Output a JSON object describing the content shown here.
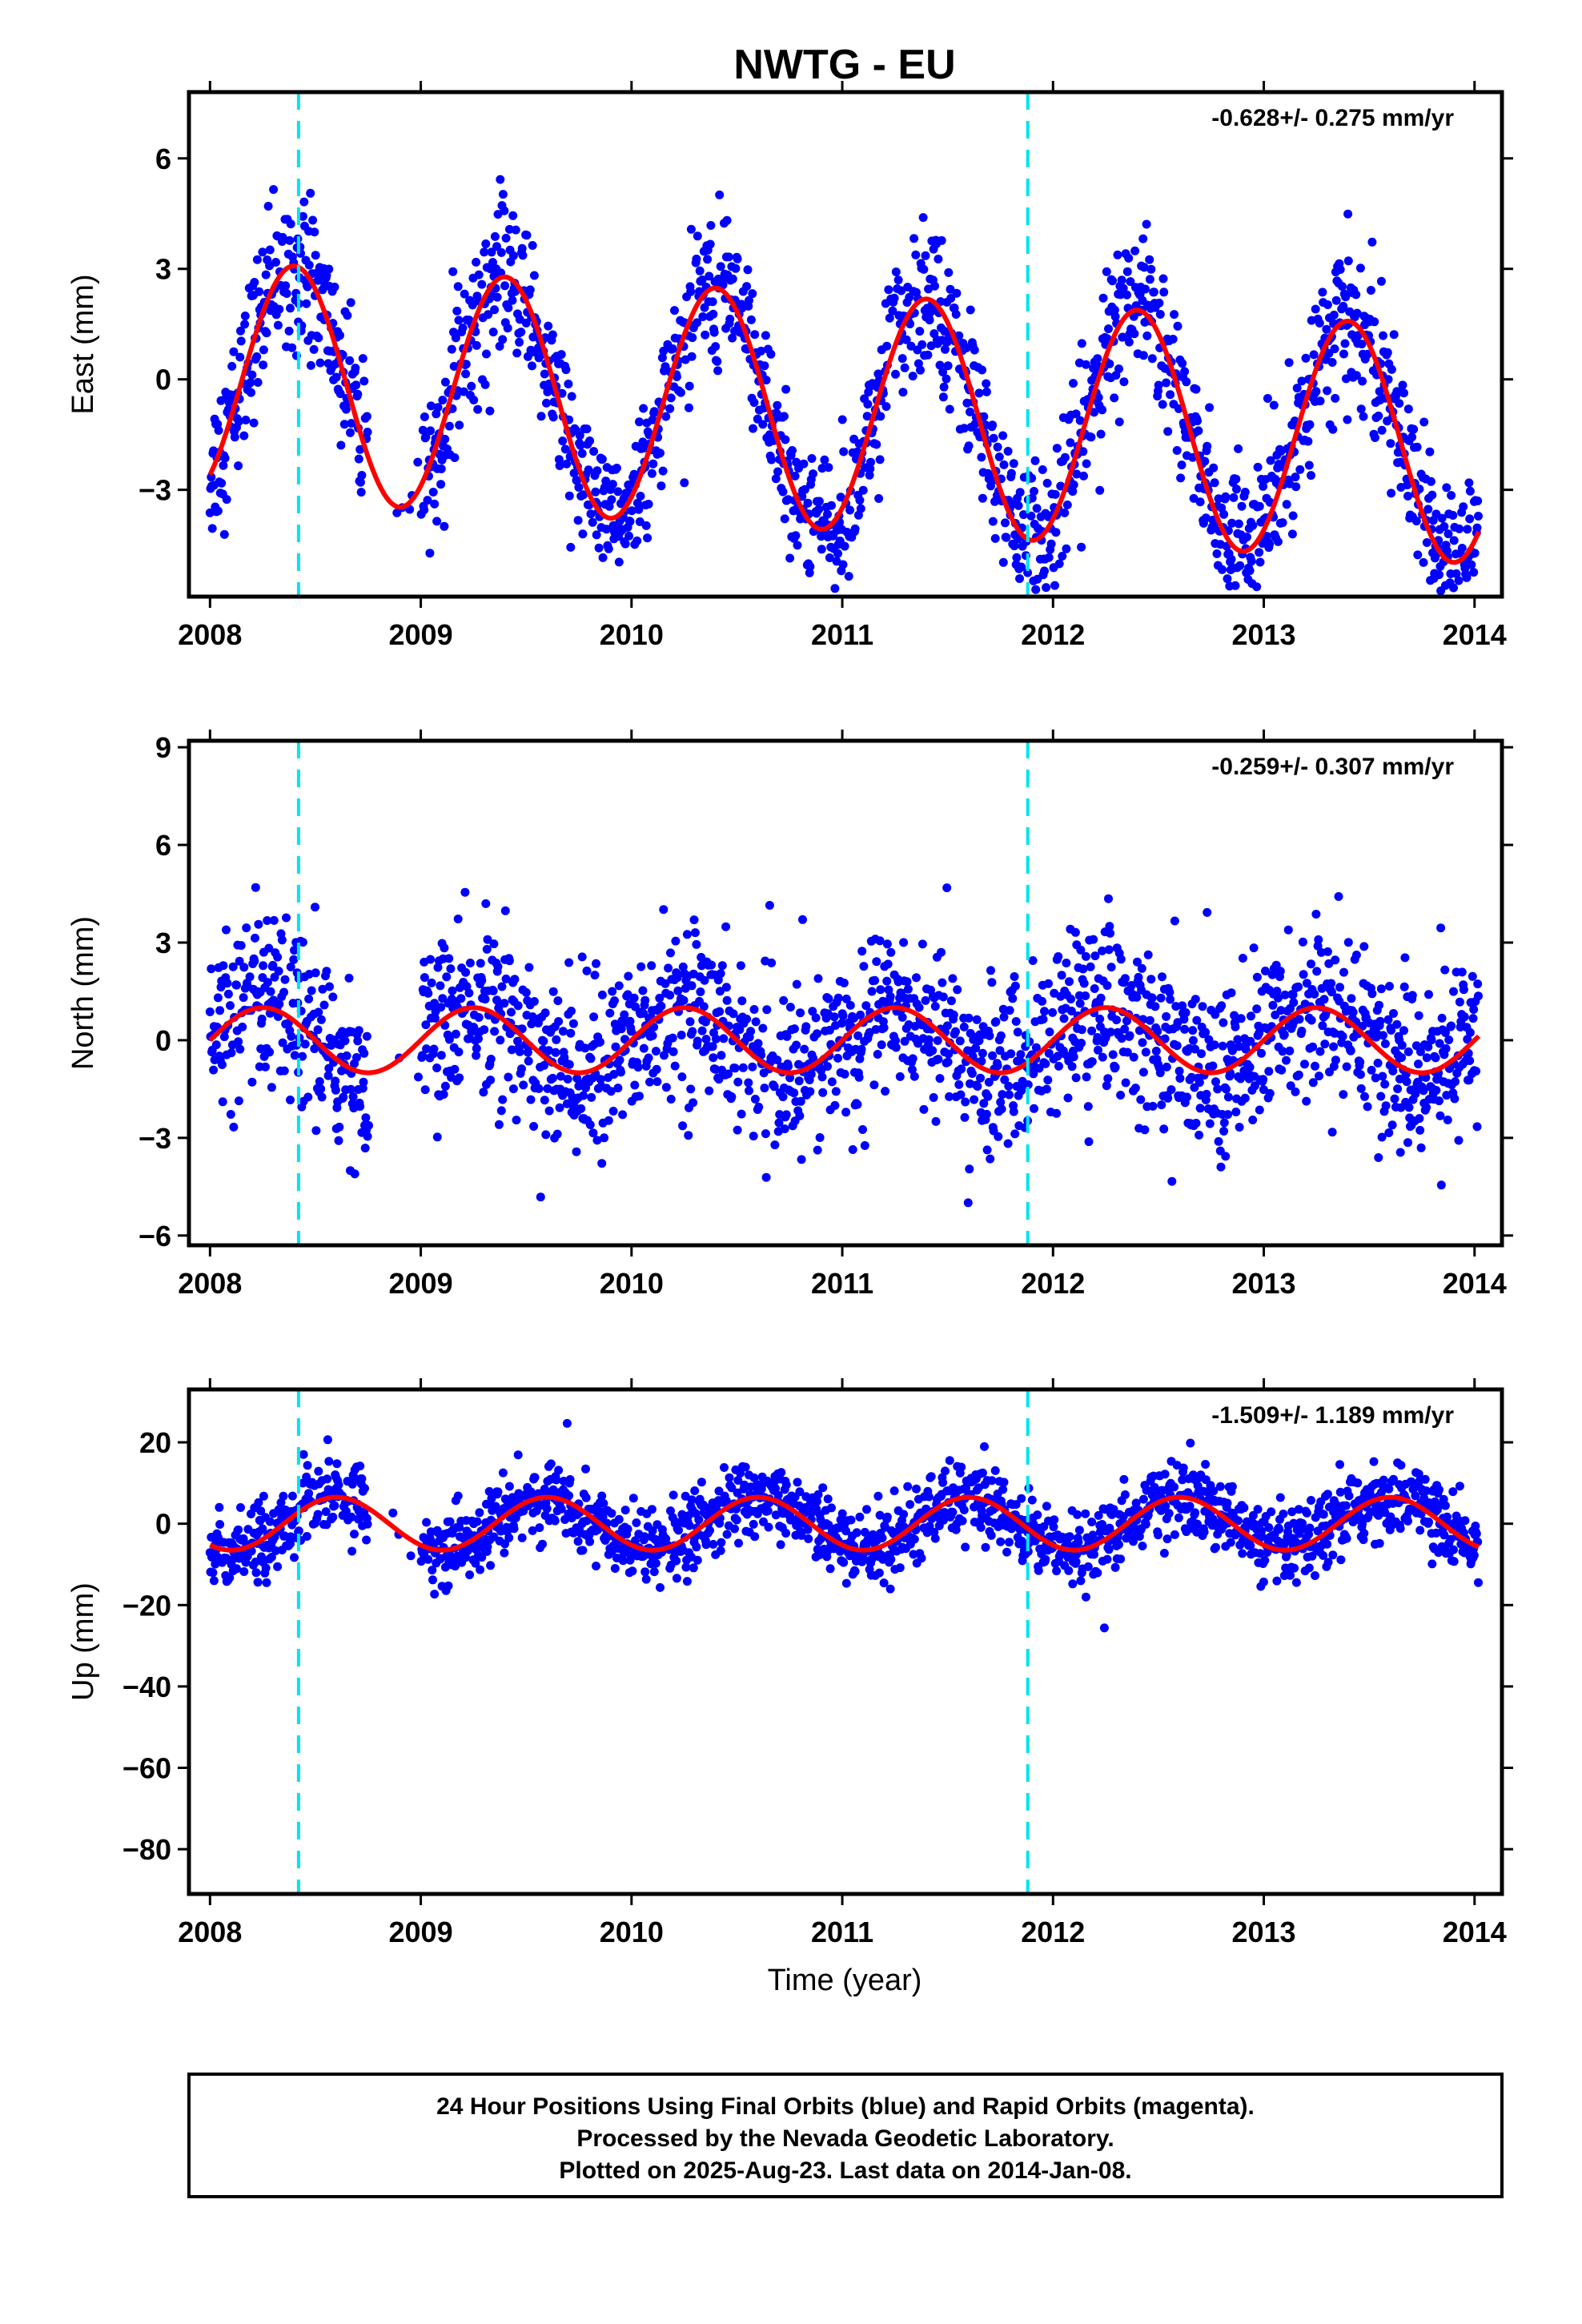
{
  "title": "NWTG - EU",
  "xlabel": "Time (year)",
  "colors": {
    "points": "#0000ff",
    "model": "#ff0000",
    "events": "#00e5ee",
    "frame": "#000000"
  },
  "footer": {
    "line1": "24 Hour Positions Using Final Orbits (blue) and Rapid Orbits (magenta).",
    "line2": "Processed by the Nevada Geodetic Laboratory.",
    "line3": "Plotted on 2025-Aug-23. Last data on 2014-Jan-08."
  },
  "chart_data": [
    {
      "type": "scatter",
      "ylabel": "East (mm)",
      "rate": "-0.628+/- 0.275 mm/yr",
      "xlim": [
        2007.9,
        2014.13
      ],
      "ylim": [
        -5.9,
        7.8
      ],
      "xticks": [
        2008,
        2009,
        2010,
        2011,
        2012,
        2013,
        2014
      ],
      "yticks": [
        -3,
        0,
        3,
        6
      ],
      "ytick_labels": [
        "−3",
        "0",
        "3",
        "6"
      ],
      "event_lines": [
        2008.42,
        2011.88
      ],
      "model": {
        "offset": -0.9,
        "amplitude": 3.2,
        "trend": -0.3,
        "phase": 2009.15,
        "gap": [
          2008.45,
          2009.0
        ]
      },
      "data_gap": [
        2008.75,
        2009.0
      ],
      "noise": 1.0,
      "series": [
        {
          "name": "",
          "values": []
        }
      ]
    },
    {
      "type": "scatter",
      "ylabel": "North (mm)",
      "rate": "-0.259+/- 0.307 mm/yr",
      "xlim": [
        2007.9,
        2014.13
      ],
      "ylim": [
        -6.3,
        9.2
      ],
      "xticks": [
        2008,
        2009,
        2010,
        2011,
        2012,
        2013,
        2014
      ],
      "yticks": [
        -6,
        -3,
        0,
        3,
        6,
        9
      ],
      "ytick_labels": [
        "−6",
        "−3",
        "0",
        "3",
        "6",
        "9"
      ],
      "event_lines": [
        2008.42,
        2011.88
      ],
      "model": {
        "offset": 0.0,
        "amplitude": 1.0,
        "trend": 0.0,
        "phase": 2009.0,
        "gap": [
          2008.45,
          2009.0
        ]
      },
      "data_gap": [
        2008.75,
        2009.0
      ],
      "noise": 1.3,
      "series": [
        {
          "name": "",
          "values": []
        }
      ]
    },
    {
      "type": "scatter",
      "ylabel": "Up (mm)",
      "rate": "-1.509+/- 1.189 mm/yr",
      "xlim": [
        2007.9,
        2014.13
      ],
      "ylim": [
        -91,
        33
      ],
      "xticks": [
        2008,
        2009,
        2010,
        2011,
        2012,
        2013,
        2014
      ],
      "yticks": [
        -80,
        -60,
        -40,
        -20,
        0,
        20
      ],
      "ytick_labels": [
        "−80",
        "−60",
        "−40",
        "−20",
        "0",
        "20"
      ],
      "event_lines": [
        2008.42,
        2011.88
      ],
      "model": {
        "offset": 0.0,
        "amplitude": 6.5,
        "trend": 0.0,
        "phase": 2009.35,
        "gap": [
          2008.45,
          2009.0
        ]
      },
      "data_gap": [
        2008.75,
        2009.0
      ],
      "noise": 4.5,
      "series": [
        {
          "name": "",
          "values": []
        }
      ]
    }
  ]
}
